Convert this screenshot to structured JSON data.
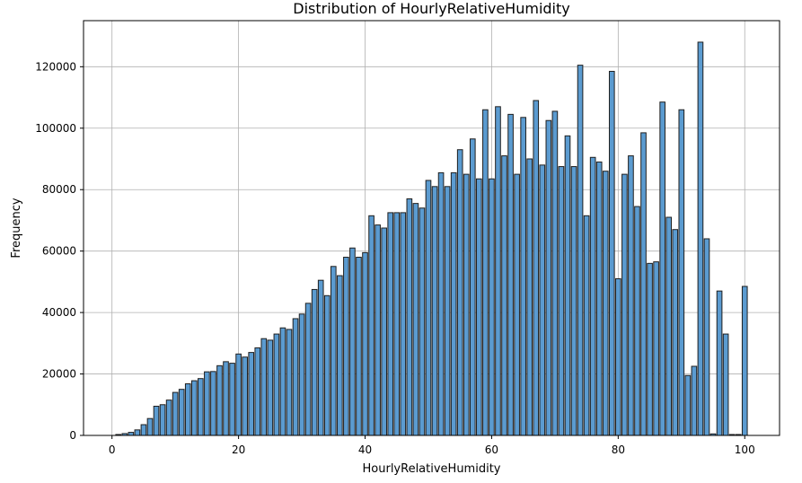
{
  "chart_data": {
    "type": "bar",
    "title": "Distribution of HourlyRelativeHumidity",
    "xlabel": "HourlyRelativeHumidity",
    "ylabel": "Frequency",
    "xlim": [
      -4.5,
      105.5
    ],
    "ylim": [
      0,
      135000
    ],
    "xticks": [
      0,
      20,
      40,
      60,
      80,
      100
    ],
    "yticks": [
      0,
      20000,
      40000,
      60000,
      80000,
      100000,
      120000
    ],
    "grid": true,
    "bar_color": "#5b9bd0",
    "edge_color": "#1f1f1f",
    "bin_width": 0.8,
    "bins": [
      {
        "x": 1,
        "value": 300
      },
      {
        "x": 2,
        "value": 600
      },
      {
        "x": 3,
        "value": 1000
      },
      {
        "x": 4,
        "value": 1800
      },
      {
        "x": 5,
        "value": 3500
      },
      {
        "x": 6,
        "value": 5500
      },
      {
        "x": 7,
        "value": 9500
      },
      {
        "x": 8,
        "value": 10000
      },
      {
        "x": 9,
        "value": 11500
      },
      {
        "x": 10,
        "value": 14000
      },
      {
        "x": 11,
        "value": 15000
      },
      {
        "x": 12,
        "value": 16800
      },
      {
        "x": 13,
        "value": 17800
      },
      {
        "x": 14,
        "value": 18500
      },
      {
        "x": 15,
        "value": 20700
      },
      {
        "x": 16,
        "value": 20800
      },
      {
        "x": 17,
        "value": 22700
      },
      {
        "x": 18,
        "value": 24000
      },
      {
        "x": 19,
        "value": 23500
      },
      {
        "x": 20,
        "value": 26500
      },
      {
        "x": 21,
        "value": 25500
      },
      {
        "x": 22,
        "value": 27000
      },
      {
        "x": 23,
        "value": 28500
      },
      {
        "x": 24,
        "value": 31500
      },
      {
        "x": 25,
        "value": 31000
      },
      {
        "x": 26,
        "value": 33000
      },
      {
        "x": 27,
        "value": 35000
      },
      {
        "x": 28,
        "value": 34500
      },
      {
        "x": 29,
        "value": 38000
      },
      {
        "x": 30,
        "value": 39500
      },
      {
        "x": 31,
        "value": 43000
      },
      {
        "x": 32,
        "value": 47500
      },
      {
        "x": 33,
        "value": 50500
      },
      {
        "x": 34,
        "value": 45500
      },
      {
        "x": 35,
        "value": 55000
      },
      {
        "x": 36,
        "value": 52000
      },
      {
        "x": 37,
        "value": 58000
      },
      {
        "x": 38,
        "value": 61000
      },
      {
        "x": 39,
        "value": 58000
      },
      {
        "x": 40,
        "value": 59500
      },
      {
        "x": 41,
        "value": 71500
      },
      {
        "x": 42,
        "value": 68500
      },
      {
        "x": 43,
        "value": 67500
      },
      {
        "x": 44,
        "value": 72500
      },
      {
        "x": 45,
        "value": 72500
      },
      {
        "x": 46,
        "value": 72500
      },
      {
        "x": 47,
        "value": 77000
      },
      {
        "x": 48,
        "value": 75500
      },
      {
        "x": 49,
        "value": 74000
      },
      {
        "x": 50,
        "value": 83000
      },
      {
        "x": 51,
        "value": 81000
      },
      {
        "x": 52,
        "value": 85500
      },
      {
        "x": 53,
        "value": 81000
      },
      {
        "x": 54,
        "value": 85500
      },
      {
        "x": 55,
        "value": 93000
      },
      {
        "x": 56,
        "value": 85000
      },
      {
        "x": 57,
        "value": 96500
      },
      {
        "x": 58,
        "value": 83500
      },
      {
        "x": 59,
        "value": 106000
      },
      {
        "x": 60,
        "value": 83500
      },
      {
        "x": 61,
        "value": 107000
      },
      {
        "x": 62,
        "value": 91000
      },
      {
        "x": 63,
        "value": 104500
      },
      {
        "x": 64,
        "value": 85000
      },
      {
        "x": 65,
        "value": 103500
      },
      {
        "x": 66,
        "value": 90000
      },
      {
        "x": 67,
        "value": 109000
      },
      {
        "x": 68,
        "value": 88000
      },
      {
        "x": 69,
        "value": 102500
      },
      {
        "x": 70,
        "value": 105500
      },
      {
        "x": 71,
        "value": 87500
      },
      {
        "x": 72,
        "value": 97500
      },
      {
        "x": 73,
        "value": 87500
      },
      {
        "x": 74,
        "value": 120500
      },
      {
        "x": 75,
        "value": 71500
      },
      {
        "x": 76,
        "value": 90500
      },
      {
        "x": 77,
        "value": 89000
      },
      {
        "x": 78,
        "value": 86000
      },
      {
        "x": 79,
        "value": 118500
      },
      {
        "x": 80,
        "value": 51000
      },
      {
        "x": 81,
        "value": 85000
      },
      {
        "x": 82,
        "value": 91000
      },
      {
        "x": 83,
        "value": 74500
      },
      {
        "x": 84,
        "value": 98500
      },
      {
        "x": 85,
        "value": 56000
      },
      {
        "x": 86,
        "value": 56500
      },
      {
        "x": 87,
        "value": 108500
      },
      {
        "x": 88,
        "value": 71000
      },
      {
        "x": 89,
        "value": 67000
      },
      {
        "x": 90,
        "value": 106000
      },
      {
        "x": 91,
        "value": 19500
      },
      {
        "x": 92,
        "value": 22500
      },
      {
        "x": 93,
        "value": 128000
      },
      {
        "x": 94,
        "value": 64000
      },
      {
        "x": 95,
        "value": 500
      },
      {
        "x": 96,
        "value": 47000
      },
      {
        "x": 97,
        "value": 33000
      },
      {
        "x": 98,
        "value": 300
      },
      {
        "x": 99,
        "value": 300
      },
      {
        "x": 100,
        "value": 48500
      }
    ]
  }
}
